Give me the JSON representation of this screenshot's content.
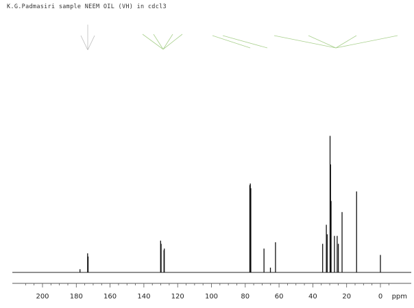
{
  "header": {
    "title": "K.G.Padmasiri sample NEEM OIL (VH) in cdcl3"
  },
  "chart_data": {
    "type": "line",
    "title": "K.G.Padmasiri sample NEEM OIL (VH) in cdcl3",
    "xlabel": "ppm",
    "ylabel": "",
    "x_reversed": true,
    "xlim": [
      210,
      -5
    ],
    "ylim": [
      0,
      1.0
    ],
    "grid": false,
    "tick_labels": [
      "200",
      "180",
      "160",
      "140",
      "120",
      "100",
      "80",
      "60",
      "40",
      "20",
      "0",
      "ppm"
    ],
    "tick_values": [
      200,
      180,
      160,
      140,
      120,
      100,
      80,
      60,
      40,
      20,
      0
    ],
    "peaks": [
      {
        "ppm": 177.8,
        "height": 0.02
      },
      {
        "ppm": 173.3,
        "height": 0.12
      },
      {
        "ppm": 173.0,
        "height": 0.1
      },
      {
        "ppm": 130.1,
        "height": 0.2
      },
      {
        "ppm": 129.8,
        "height": 0.18
      },
      {
        "ppm": 128.1,
        "height": 0.14
      },
      {
        "ppm": 127.9,
        "height": 0.15
      },
      {
        "ppm": 77.3,
        "height": 0.55
      },
      {
        "ppm": 77.0,
        "height": 0.56
      },
      {
        "ppm": 76.7,
        "height": 0.53
      },
      {
        "ppm": 68.9,
        "height": 0.15
      },
      {
        "ppm": 65.1,
        "height": 0.03
      },
      {
        "ppm": 62.1,
        "height": 0.19
      },
      {
        "ppm": 34.2,
        "height": 0.18
      },
      {
        "ppm": 32.0,
        "height": 0.3
      },
      {
        "ppm": 31.5,
        "height": 0.24
      },
      {
        "ppm": 29.8,
        "height": 0.86
      },
      {
        "ppm": 29.5,
        "height": 0.68
      },
      {
        "ppm": 29.2,
        "height": 0.45
      },
      {
        "ppm": 27.2,
        "height": 0.23
      },
      {
        "ppm": 25.6,
        "height": 0.23
      },
      {
        "ppm": 24.9,
        "height": 0.18
      },
      {
        "ppm": 22.7,
        "height": 0.38
      },
      {
        "ppm": 14.1,
        "height": 0.51
      },
      {
        "ppm": 0.0,
        "height": 0.11
      }
    ]
  }
}
